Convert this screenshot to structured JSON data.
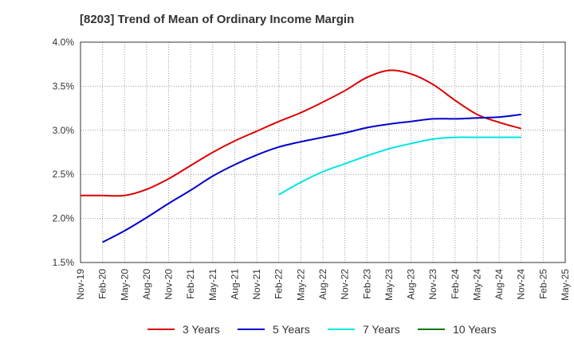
{
  "chart_data": {
    "type": "line",
    "title": "[8203]  Trend of Mean of Ordinary Income Margin",
    "xlabel": "",
    "ylabel": "",
    "x_ticks": [
      "Nov-19",
      "Feb-20",
      "May-20",
      "Aug-20",
      "Nov-20",
      "Feb-21",
      "May-21",
      "Aug-21",
      "Nov-21",
      "Feb-22",
      "May-22",
      "Aug-22",
      "Nov-22",
      "Feb-23",
      "May-23",
      "Aug-23",
      "Nov-23",
      "Feb-24",
      "May-24",
      "Aug-24",
      "Nov-24",
      "Feb-25",
      "May-25"
    ],
    "y_ticks": [
      "1.5%",
      "2.0%",
      "2.5%",
      "3.0%",
      "3.5%",
      "4.0%"
    ],
    "ylim": [
      1.5,
      4.0
    ],
    "grid": true,
    "legend_position": "bottom",
    "series": [
      {
        "name": "3 Years",
        "color": "#dd0000",
        "values": [
          2.26,
          2.26,
          2.26,
          2.33,
          2.45,
          2.6,
          2.75,
          2.88,
          2.99,
          3.1,
          3.2,
          3.32,
          3.45,
          3.6,
          3.68,
          3.64,
          3.52,
          3.34,
          3.18,
          3.09,
          3.02,
          null,
          null
        ]
      },
      {
        "name": "5 Years",
        "color": "#0000cc",
        "values": [
          null,
          1.73,
          1.86,
          2.01,
          2.17,
          2.32,
          2.48,
          2.61,
          2.72,
          2.81,
          2.87,
          2.92,
          2.97,
          3.03,
          3.07,
          3.1,
          3.13,
          3.13,
          3.14,
          3.15,
          3.18,
          null,
          null
        ]
      },
      {
        "name": "7 Years",
        "color": "#00e5e5",
        "values": [
          null,
          null,
          null,
          null,
          null,
          null,
          null,
          null,
          null,
          2.27,
          2.41,
          2.53,
          2.62,
          2.71,
          2.79,
          2.85,
          2.9,
          2.92,
          2.92,
          2.92,
          2.92,
          null,
          null
        ]
      },
      {
        "name": "10 Years",
        "color": "#007700",
        "values": [
          null,
          null,
          null,
          null,
          null,
          null,
          null,
          null,
          null,
          null,
          null,
          null,
          null,
          null,
          null,
          null,
          null,
          null,
          null,
          null,
          null,
          null,
          null
        ]
      }
    ]
  }
}
